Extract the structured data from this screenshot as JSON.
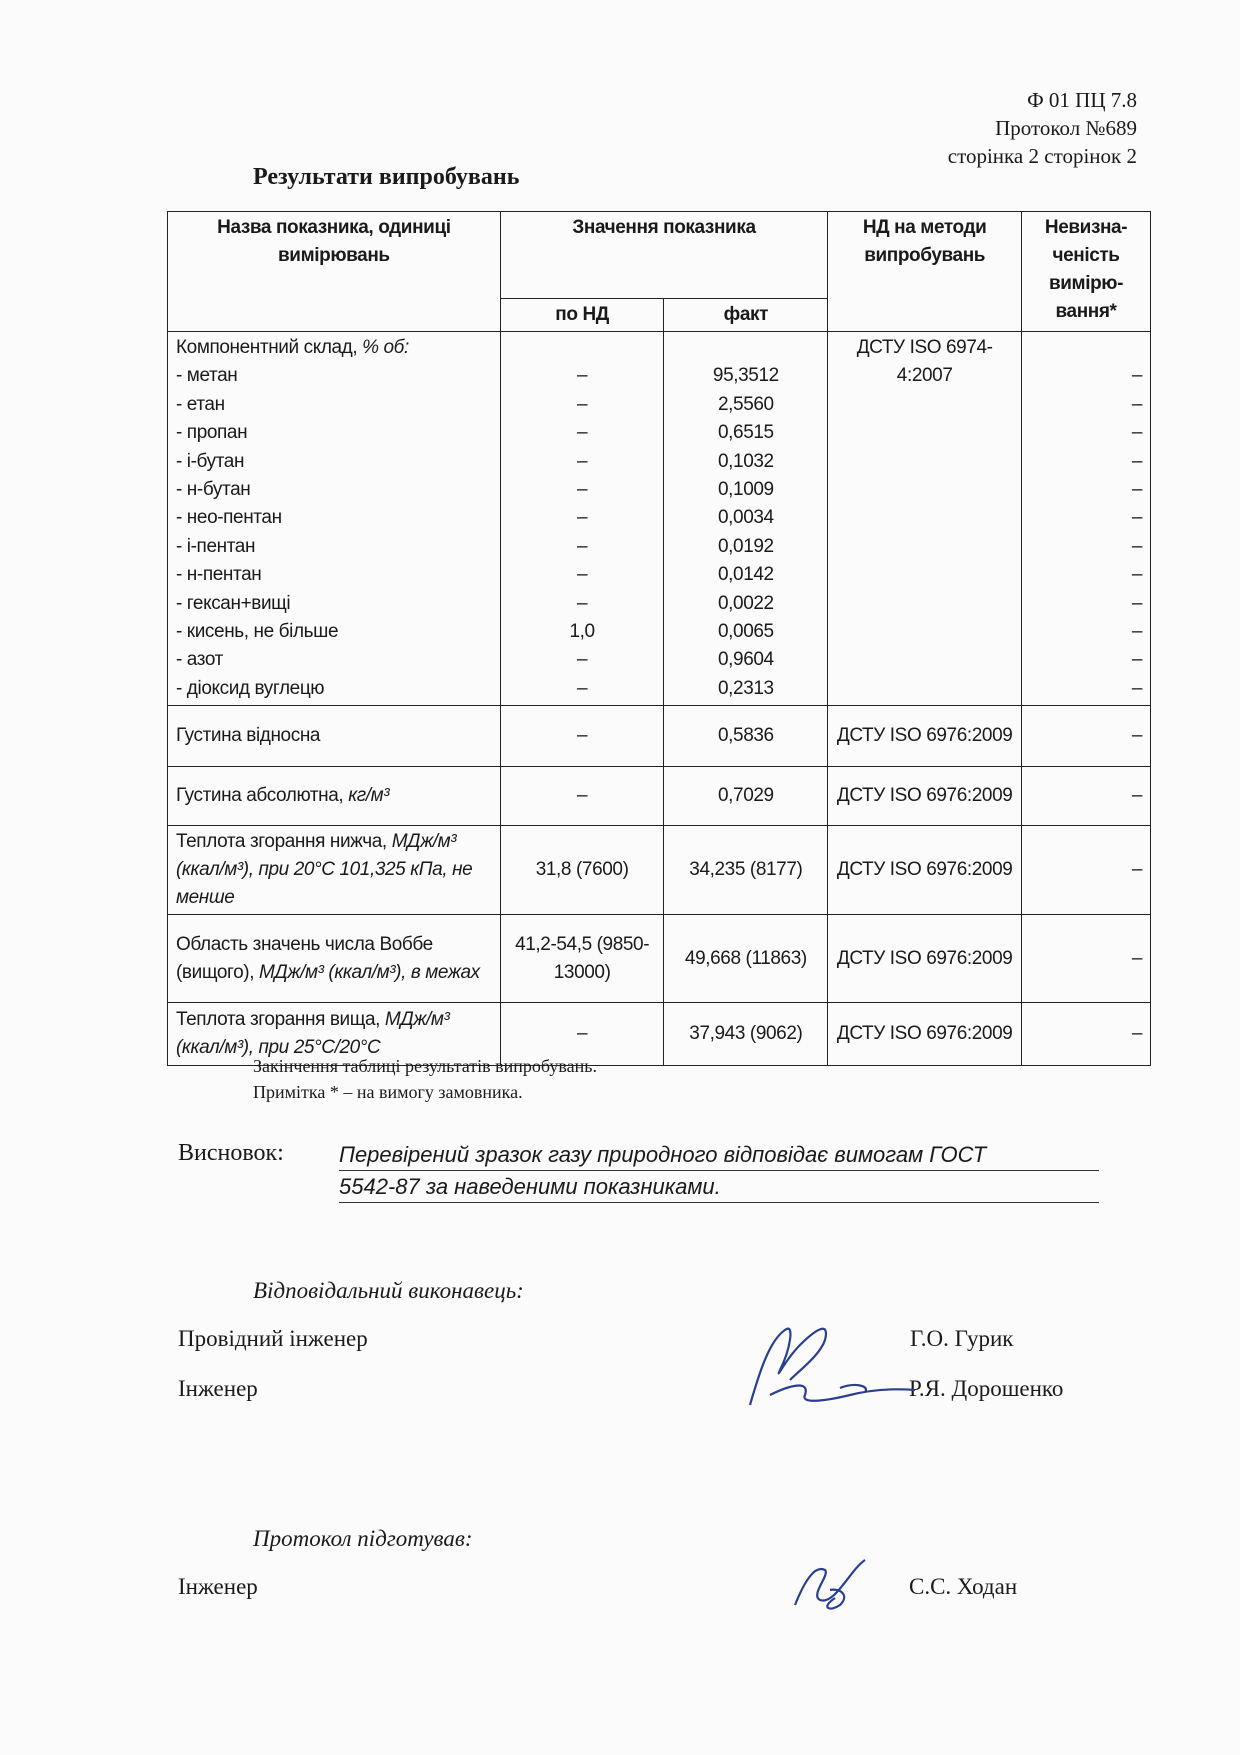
{
  "header": {
    "form_code": "Ф 01 ПЦ 7.8",
    "protocol": "Протокол №689",
    "page": "сторінка 2 сторінок 2"
  },
  "title": "Результати випробувань",
  "table": {
    "headers": {
      "name": "Назва показника, одиниці вимірювань",
      "value": "Значення показника",
      "by_nd": "по НД",
      "fact": "факт",
      "method": "НД на методи випробувань",
      "uncertainty": "Невизна-ченість вимірю-вання*"
    },
    "composition": {
      "label": "Компонентний склад, ",
      "unit": "% об:",
      "method": "ДСТУ ISO 6974-4:2007",
      "rows": [
        {
          "name": "- метан",
          "nd": "–",
          "fact": "95,3512",
          "unc": "–"
        },
        {
          "name": "- етан",
          "nd": "–",
          "fact": "2,5560",
          "unc": "–"
        },
        {
          "name": "- пропан",
          "nd": "–",
          "fact": "0,6515",
          "unc": "–"
        },
        {
          "name": "- і-бутан",
          "nd": "–",
          "fact": "0,1032",
          "unc": "–"
        },
        {
          "name": "- н-бутан",
          "nd": "–",
          "fact": "0,1009",
          "unc": "–"
        },
        {
          "name": "- нео-пентан",
          "nd": "–",
          "fact": "0,0034",
          "unc": "–"
        },
        {
          "name": "- і-пентан",
          "nd": "–",
          "fact": "0,0192",
          "unc": "–"
        },
        {
          "name": "- н-пентан",
          "nd": "–",
          "fact": "0,0142",
          "unc": "–"
        },
        {
          "name": "- гексан+вищі",
          "nd": "–",
          "fact": "0,0022",
          "unc": "–"
        },
        {
          "name": "- кисень, не більше",
          "nd": "1,0",
          "fact": "0,0065",
          "unc": "–"
        },
        {
          "name": "- азот",
          "nd": "–",
          "fact": "0,9604",
          "unc": "–"
        },
        {
          "name": "- діоксид вуглецю",
          "nd": "–",
          "fact": "0,2313",
          "unc": "–"
        }
      ]
    },
    "rows": [
      {
        "name": "Густина відносна",
        "nd": "–",
        "fact": "0,5836",
        "method": "ДСТУ ISO 6976:2009",
        "unc": "–"
      },
      {
        "name": "Густина абсолютна, ",
        "unit": "кг/м³",
        "nd": "–",
        "fact": "0,7029",
        "method": "ДСТУ ISO 6976:2009",
        "unc": "–"
      },
      {
        "name": "Теплота згорання нижча, ",
        "unit": "МДж/м³ (ккал/м³), при 20°С 101,325 кПа, не менше",
        "nd": "31,8 (7600)",
        "fact": "34,235 (8177)",
        "method": "ДСТУ ISO 6976:2009",
        "unc": "–"
      },
      {
        "name": "Область значень числа Воббе (вищого), ",
        "unit": "МДж/м³ (ккал/м³), в межах",
        "nd": "41,2-54,5 (9850-13000)",
        "fact": "49,668 (11863)",
        "method": "ДСТУ ISO 6976:2009",
        "unc": "–"
      },
      {
        "name": "Теплота згорання вища, ",
        "unit": "МДж/м³ (ккал/м³), при 25°С/20°С",
        "nd": "–",
        "fact": "37,943 (9062)",
        "method": "ДСТУ ISO 6976:2009",
        "unc": "–"
      }
    ]
  },
  "notes": {
    "end": "Закінчення таблиці результатів випробувань.",
    "footnote": "Примітка * – на вимогу замовника."
  },
  "conclusion": {
    "label": "Висновок:",
    "line1": "Перевірений зразок газу природного відповідає вимогам ГОСТ",
    "line2": "5542-87 за наведеними показниками."
  },
  "responsible": {
    "heading": "Відповідальний виконавець:",
    "signers": [
      {
        "role": "Провідний інженер",
        "name": "Г.О. Гурик"
      },
      {
        "role": "Інженер",
        "name": "Р.Я. Дорошенко"
      }
    ]
  },
  "prepared": {
    "heading": "Протокол підготував:",
    "role": "Інженер",
    "name": "С.С. Ходан"
  }
}
